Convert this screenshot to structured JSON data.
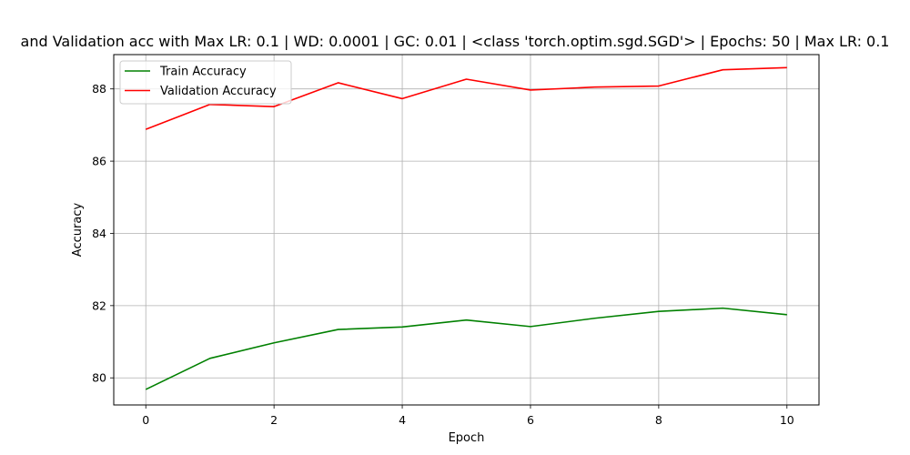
{
  "chart_data": {
    "type": "line",
    "title": "and Validation acc with Max LR: 0.1 | WD: 0.0001 | GC: 0.01 | <class 'torch.optim.sgd.SGD'> | Epochs: 50 | Max LR: 0.1",
    "xlabel": "Epoch",
    "ylabel": "Accuracy",
    "xlim": [
      -0.5,
      10.5
    ],
    "ylim": [
      79.25,
      88.95
    ],
    "xticks": [
      0,
      2,
      4,
      6,
      8,
      10
    ],
    "yticks": [
      80,
      82,
      84,
      86,
      88
    ],
    "grid": true,
    "legend_position": "upper left",
    "x": [
      0,
      1,
      2,
      3,
      4,
      5,
      6,
      7,
      8,
      9,
      10
    ],
    "series": [
      {
        "name": "Train Accuracy",
        "color": "#008000",
        "values": [
          79.68,
          80.54,
          80.97,
          81.34,
          81.41,
          81.6,
          81.42,
          81.65,
          81.84,
          81.93,
          81.75
        ]
      },
      {
        "name": "Validation Accuracy",
        "color": "#ff0000",
        "values": [
          86.88,
          87.57,
          87.51,
          88.17,
          87.73,
          88.27,
          87.97,
          88.05,
          88.08,
          88.53,
          88.59
        ]
      }
    ]
  }
}
